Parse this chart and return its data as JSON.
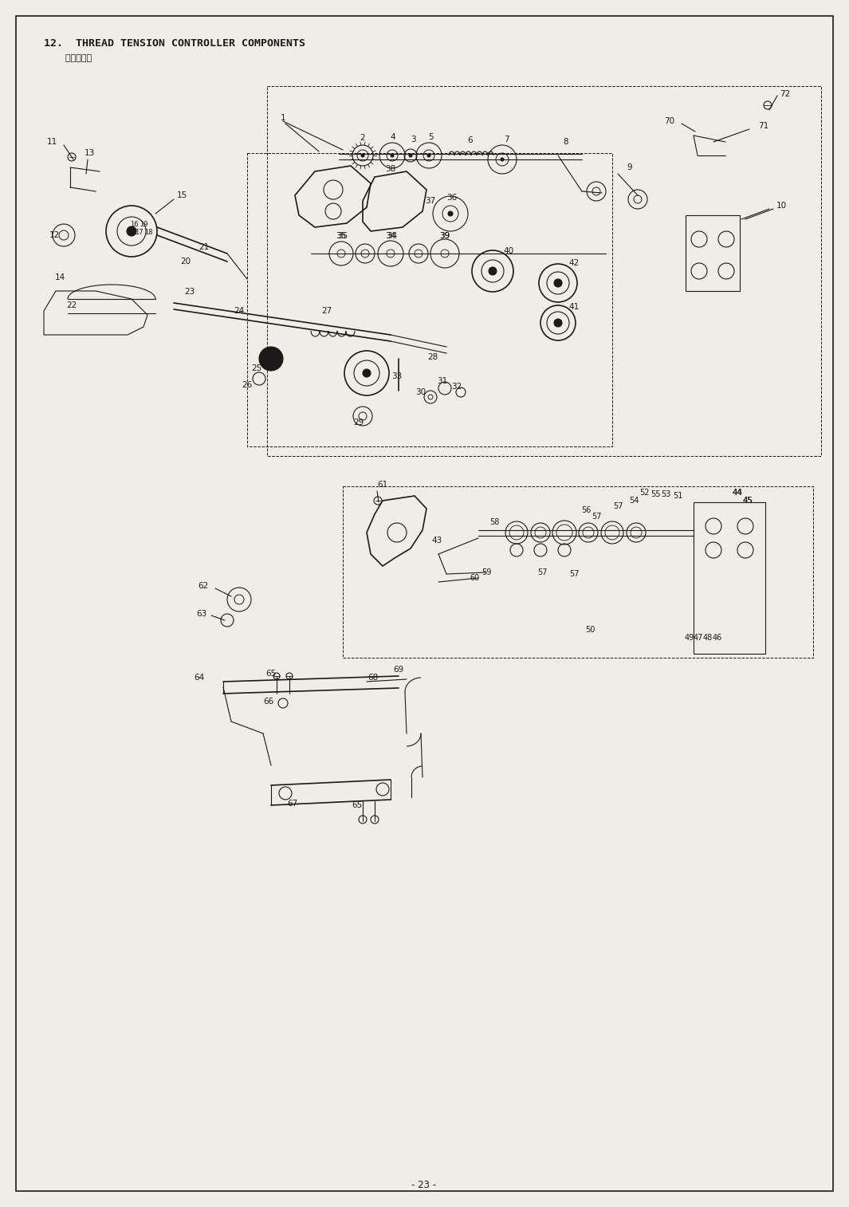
{
  "title_line1": "12.  THREAD TENSION CONTROLLER COMPONENTS",
  "title_line2": "    糸調子関係",
  "page_number": "- 23 -",
  "bg_color": "#f0ede8",
  "line_color": "#1a1a1a",
  "text_color": "#1a1a1a",
  "title_fontsize": 9.5,
  "label_fontsize": 7.5,
  "page_fontsize": 8.5,
  "fig_w": 10.65,
  "fig_h": 15.14,
  "dpi": 100
}
